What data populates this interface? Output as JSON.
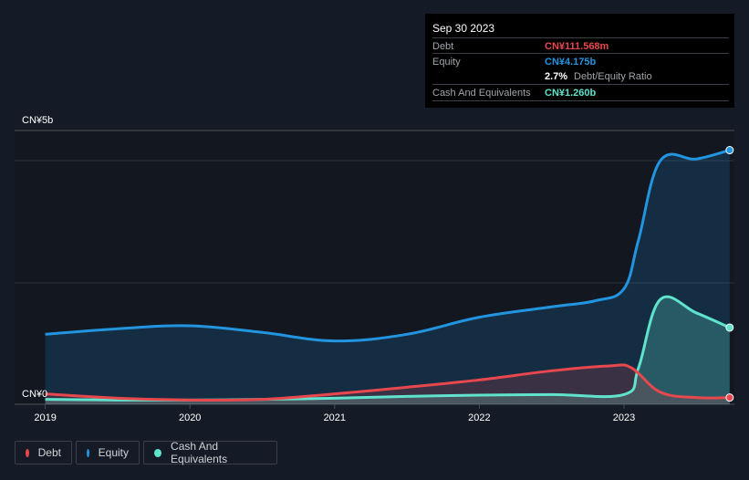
{
  "tooltip": {
    "date": "Sep 30 2023",
    "debt_label": "Debt",
    "debt_value": "CN¥111.568m",
    "equity_label": "Equity",
    "equity_value": "CN¥4.175b",
    "ratio_value": "2.7%",
    "ratio_label": "Debt/Equity Ratio",
    "cash_label": "Cash And Equivalents",
    "cash_value": "CN¥1.260b"
  },
  "colors": {
    "debt": "#e8484d",
    "equity": "#2394df",
    "cash": "#5fe3cc"
  },
  "chart_data": {
    "type": "area",
    "y_tick_labels": [
      "CN¥5b",
      "CN¥0"
    ],
    "x_tick_labels": [
      "2019",
      "2020",
      "2021",
      "2022",
      "2023"
    ],
    "ylim": [
      0,
      4.5
    ],
    "xlim": [
      2018.99,
      2023.75
    ],
    "units": "CN¥ billions",
    "series": [
      {
        "name": "Debt",
        "x": [
          2019,
          2019.5,
          2020,
          2020.5,
          2021,
          2021.5,
          2022,
          2022.5,
          2022.9,
          2023.05,
          2023.25,
          2023.5,
          2023.73
        ],
        "values": [
          0.17,
          0.1,
          0.07,
          0.08,
          0.17,
          0.28,
          0.4,
          0.55,
          0.63,
          0.6,
          0.2,
          0.11,
          0.11
        ]
      },
      {
        "name": "Equity",
        "x": [
          2019,
          2019.5,
          2020,
          2020.5,
          2021,
          2021.5,
          2022,
          2022.5,
          2022.8,
          2023,
          2023.1,
          2023.25,
          2023.5,
          2023.73
        ],
        "values": [
          1.15,
          1.24,
          1.29,
          1.18,
          1.04,
          1.15,
          1.43,
          1.6,
          1.7,
          1.9,
          2.7,
          4.0,
          4.03,
          4.175
        ]
      },
      {
        "name": "Cash And Equivalents",
        "x": [
          2019,
          2019.5,
          2020,
          2020.5,
          2021,
          2021.5,
          2022,
          2022.5,
          2023,
          2023.1,
          2023.25,
          2023.5,
          2023.73
        ],
        "values": [
          0.08,
          0.07,
          0.07,
          0.08,
          0.1,
          0.13,
          0.15,
          0.16,
          0.16,
          0.6,
          1.72,
          1.5,
          1.26
        ]
      }
    ],
    "legend": [
      "Debt",
      "Equity",
      "Cash And Equivalents"
    ],
    "legend_position": "bottom-left",
    "grid": true
  }
}
